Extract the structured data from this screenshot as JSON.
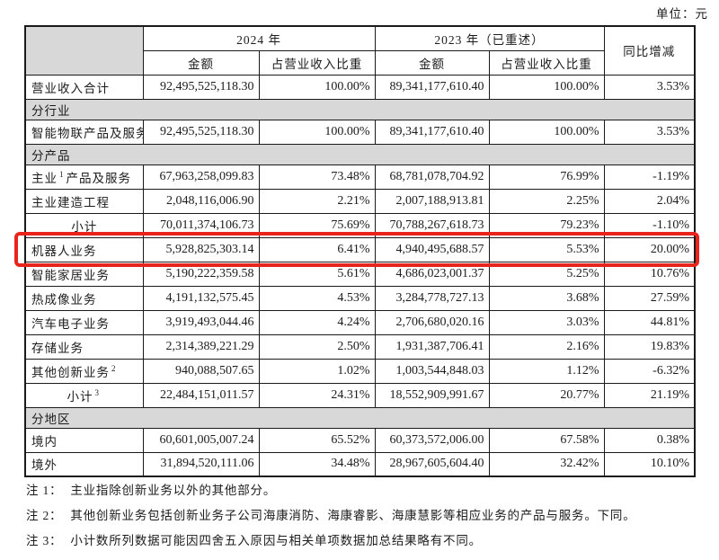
{
  "page": {
    "unit_label": "单位：元"
  },
  "colors": {
    "section_bg": "#d8d8d8",
    "border": "#1a1a1a",
    "highlight": "#e8241c"
  },
  "table": {
    "header": {
      "year_2024": "2024 年",
      "year_2023": "2023 年（已重述）",
      "yoy": "同比增减",
      "amount": "金额",
      "pct_of_revenue": "占营业收入比重"
    },
    "rows": [
      {
        "type": "data",
        "label": "营业收入合计",
        "a24": "92,495,525,118.30",
        "p24": "100.00%",
        "a23": "89,341,177,610.40",
        "p23": "100.00%",
        "yoy": "3.53%"
      },
      {
        "type": "section",
        "label": "分行业"
      },
      {
        "type": "data",
        "label": "智能物联产品及服务",
        "a24": "92,495,525,118.30",
        "p24": "100.00%",
        "a23": "89,341,177,610.40",
        "p23": "100.00%",
        "yoy": "3.53%"
      },
      {
        "type": "section",
        "label": "分产品"
      },
      {
        "type": "data",
        "label": "主业",
        "sup": "1",
        "label2": "产品及服务",
        "a24": "67,963,258,099.83",
        "p24": "73.48%",
        "a23": "68,781,078,704.92",
        "p23": "76.99%",
        "yoy": "-1.19%"
      },
      {
        "type": "data",
        "label": "主业建造工程",
        "a24": "2,048,116,006.90",
        "p24": "2.21%",
        "a23": "2,007,188,913.81",
        "p23": "2.25%",
        "yoy": "2.04%"
      },
      {
        "type": "data",
        "label": "小计",
        "align": "center",
        "a24": "70,011,374,106.73",
        "p24": "75.69%",
        "a23": "70,788,267,618.73",
        "p23": "79.23%",
        "yoy": "-1.10%"
      },
      {
        "type": "data",
        "label": "机器人业务",
        "highlight": true,
        "a24": "5,928,825,303.14",
        "p24": "6.41%",
        "a23": "4,940,495,688.57",
        "p23": "5.53%",
        "yoy": "20.00%"
      },
      {
        "type": "data",
        "label": "智能家居业务",
        "a24": "5,190,222,359.58",
        "p24": "5.61%",
        "a23": "4,686,023,001.37",
        "p23": "5.25%",
        "yoy": "10.76%"
      },
      {
        "type": "data",
        "label": "热成像业务",
        "a24": "4,191,132,575.45",
        "p24": "4.53%",
        "a23": "3,284,778,727.13",
        "p23": "3.68%",
        "yoy": "27.59%"
      },
      {
        "type": "data",
        "label": "汽车电子业务",
        "a24": "3,919,493,044.46",
        "p24": "4.24%",
        "a23": "2,706,680,020.16",
        "p23": "3.03%",
        "yoy": "44.81%"
      },
      {
        "type": "data",
        "label": "存储业务",
        "a24": "2,314,389,221.29",
        "p24": "2.50%",
        "a23": "1,931,387,706.41",
        "p23": "2.16%",
        "yoy": "19.83%"
      },
      {
        "type": "data",
        "label": "其他创新业务",
        "sup": "2",
        "a24": "940,088,507.65",
        "p24": "1.02%",
        "a23": "1,003,544,848.03",
        "p23": "1.12%",
        "yoy": "-6.32%"
      },
      {
        "type": "data",
        "label": "小计",
        "sup": "3",
        "align": "center",
        "a24": "22,484,151,011.57",
        "p24": "24.31%",
        "a23": "18,552,909,991.67",
        "p23": "20.77%",
        "yoy": "21.19%"
      },
      {
        "type": "section",
        "label": "分地区"
      },
      {
        "type": "data",
        "label": "境内",
        "a24": "60,601,005,007.24",
        "p24": "65.52%",
        "a23": "60,373,572,006.00",
        "p23": "67.58%",
        "yoy": "0.38%"
      },
      {
        "type": "data",
        "label": "境外",
        "a24": "31,894,520,111.06",
        "p24": "34.48%",
        "a23": "28,967,605,604.40",
        "p23": "32.42%",
        "yoy": "10.10%"
      }
    ]
  },
  "notes": [
    {
      "label": "注 1：",
      "text": "主业指除创新业务以外的其他部分。"
    },
    {
      "label": "注 2：",
      "text": "其他创新业务包括创新业务子公司海康消防、海康睿影、海康慧影等相应业务的产品与服务。下同。"
    },
    {
      "label": "注 3：",
      "text": "小计数所列数据可能因四舍五入原因与相关单项数据加总结果略有不同。"
    }
  ]
}
